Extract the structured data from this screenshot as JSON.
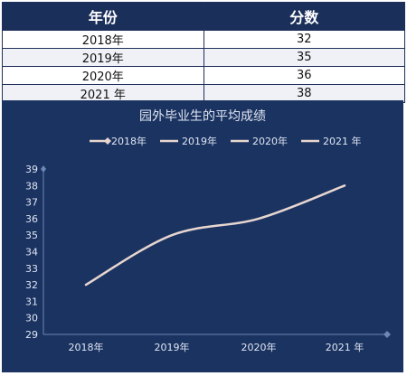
{
  "table": {
    "headers": [
      "年份",
      "分数"
    ],
    "rows": [
      {
        "year": "2018年",
        "score": "32"
      },
      {
        "year": "2019年",
        "score": "35"
      },
      {
        "year": "2020年",
        "score": "36"
      },
      {
        "year": "2021 年",
        "score": "38"
      }
    ]
  },
  "colors": {
    "panel": "#1b3361",
    "line": "#e7d6d0",
    "text": "#dfe5f2",
    "axis": "#6f86b3",
    "header": "#1b2f5b"
  },
  "chart_data": {
    "type": "line",
    "title": "园外毕业生的平均成绩",
    "categories": [
      "2018年",
      "2019年",
      "2020年",
      "2021 年"
    ],
    "values": [
      32,
      35,
      36,
      38
    ],
    "legend": [
      "2018年",
      "2019年",
      "2020年",
      "2021 年"
    ],
    "legend_position": "top",
    "ylim": [
      29,
      39
    ],
    "yticks": [
      29,
      30,
      31,
      32,
      33,
      34,
      35,
      36,
      37,
      38,
      39
    ],
    "grid": false,
    "smooth": true
  }
}
